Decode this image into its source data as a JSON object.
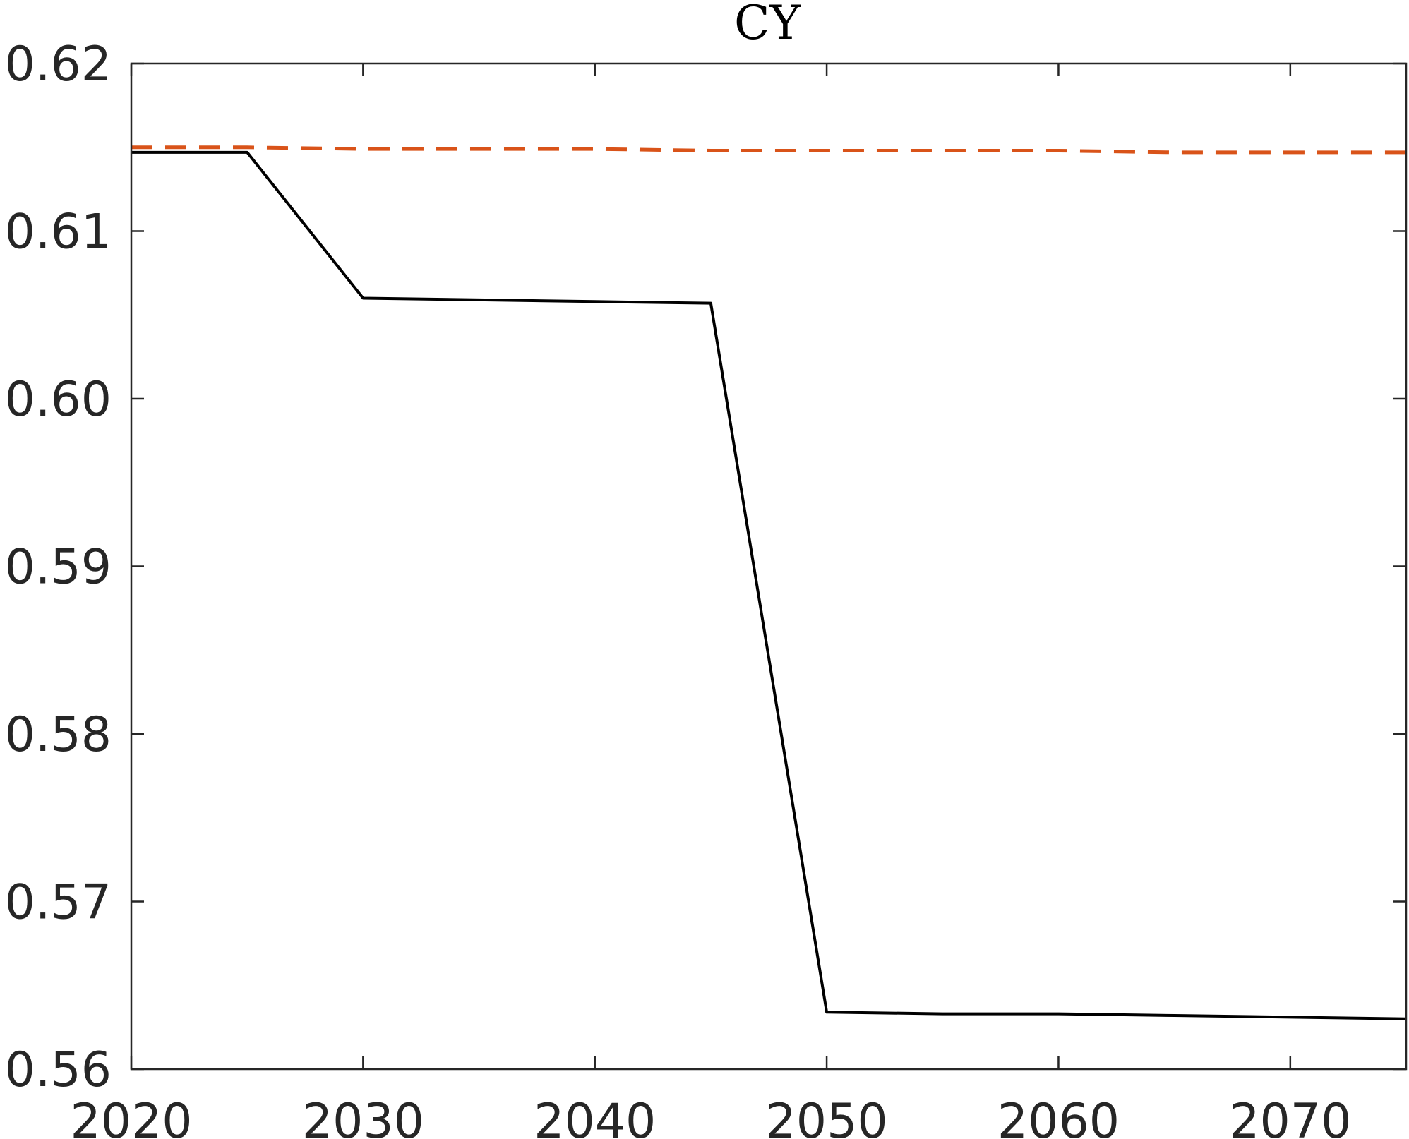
{
  "chart_data": {
    "type": "line",
    "title": "CY",
    "xlabel": "",
    "ylabel": "",
    "xlim": [
      2020,
      2075
    ],
    "ylim": [
      0.56,
      0.62
    ],
    "xticks": [
      2020,
      2030,
      2040,
      2050,
      2060,
      2070
    ],
    "xtick_labels": [
      "2020",
      "2030",
      "2040",
      "2050",
      "2060",
      "2070"
    ],
    "yticks": [
      0.56,
      0.57,
      0.58,
      0.59,
      0.6,
      0.61,
      0.62
    ],
    "ytick_labels": [
      "0.56",
      "0.57",
      "0.58",
      "0.59",
      "0.60",
      "0.61",
      "0.62"
    ],
    "grid": false,
    "legend": null,
    "series": [
      {
        "style": "solid",
        "color": "#000000",
        "x": [
          2020,
          2025,
          2030,
          2035,
          2040,
          2045,
          2050,
          2055,
          2060,
          2065,
          2070,
          2075
        ],
        "y": [
          0.6147,
          0.6147,
          0.606,
          0.6059,
          0.6058,
          0.6057,
          0.5634,
          0.5633,
          0.5633,
          0.5632,
          0.5631,
          0.563
        ]
      },
      {
        "style": "dashed",
        "color": "#D95319",
        "x": [
          2020,
          2025,
          2030,
          2035,
          2040,
          2045,
          2050,
          2055,
          2060,
          2065,
          2070,
          2075
        ],
        "y": [
          0.615,
          0.615,
          0.6149,
          0.6149,
          0.6149,
          0.6148,
          0.6148,
          0.6148,
          0.6148,
          0.6147,
          0.6147,
          0.6147
        ]
      }
    ]
  }
}
